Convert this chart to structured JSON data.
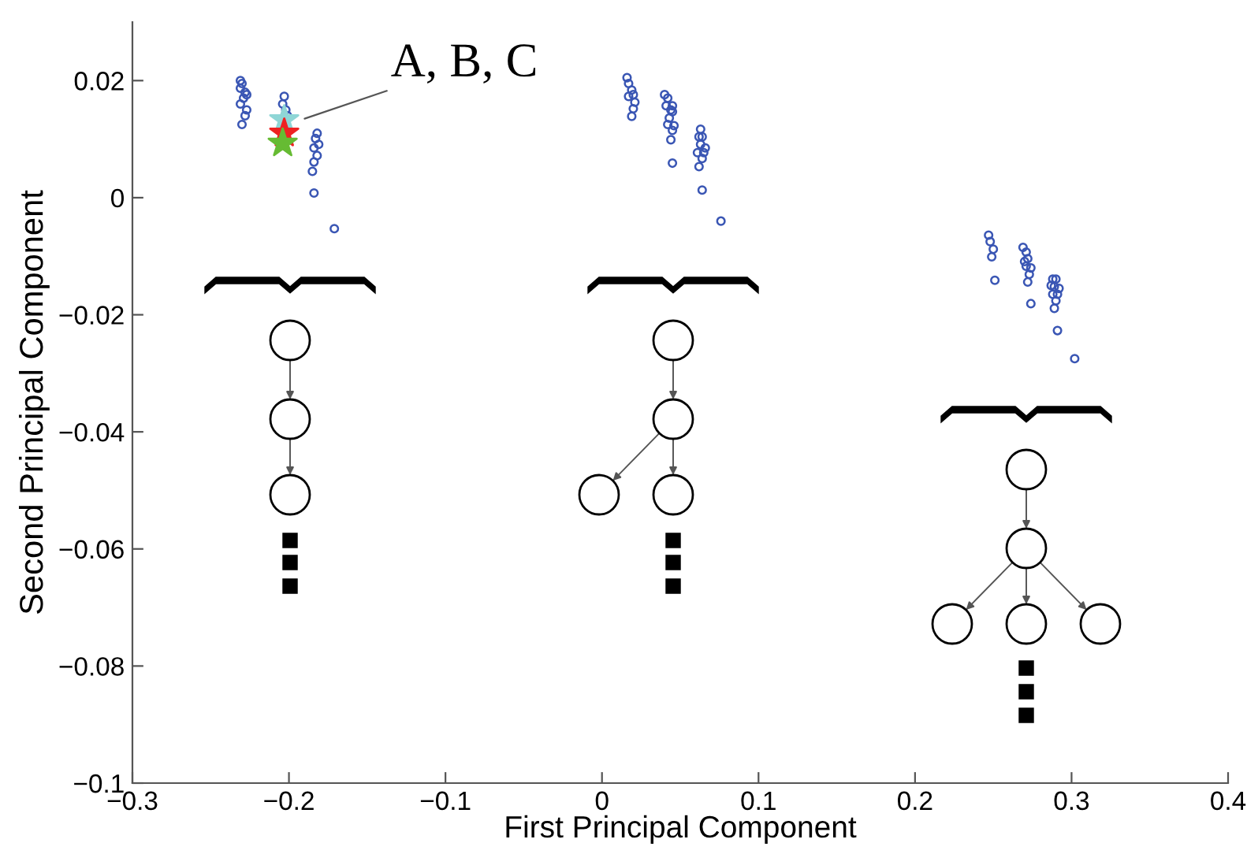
{
  "chart_data": {
    "type": "scatter",
    "xlabel": "First Principal Component",
    "ylabel": "Second Principal Component",
    "xlim": [
      -0.3,
      0.4
    ],
    "xticks": [
      {
        "value": -0.3,
        "label": "−0.3"
      },
      {
        "value": -0.2,
        "label": "−0.2"
      },
      {
        "value": -0.1,
        "label": "−0.1"
      },
      0,
      0.1,
      0.2,
      0.3,
      0.4
    ],
    "ylim": [
      -0.1,
      0.03
    ],
    "yticks": [
      {
        "value": -0.1,
        "label": "−0.1"
      },
      {
        "value": -0.08,
        "label": "−0.08"
      },
      {
        "value": -0.06,
        "label": "−0.06"
      },
      {
        "value": -0.04,
        "label": "−0.04"
      },
      {
        "value": -0.02,
        "label": "−0.02"
      },
      0,
      0.02
    ],
    "grid": false,
    "annotations": [
      {
        "text": "A, B, C",
        "x": -0.19,
        "y": 0.0135
      }
    ],
    "series": [
      {
        "color": "#3a56b4",
        "marker": "circle",
        "x": [
          -0.231,
          -0.23,
          -0.231,
          -0.228,
          -0.227,
          -0.229,
          -0.231,
          -0.227,
          -0.228,
          -0.23,
          -0.203,
          -0.204,
          -0.202,
          -0.201,
          -0.182,
          -0.183,
          -0.181,
          -0.184,
          -0.182,
          -0.184,
          -0.185,
          -0.184,
          -0.171,
          0.016,
          0.017,
          0.019,
          0.017,
          0.02,
          0.021,
          0.02,
          0.019,
          0.04,
          0.042,
          0.041,
          0.045,
          0.044,
          0.045,
          0.043,
          0.042,
          0.046,
          0.045,
          0.044,
          0.045,
          0.063,
          0.062,
          0.064,
          0.063,
          0.066,
          0.061,
          0.065,
          0.064,
          0.062,
          0.064,
          0.076,
          0.247,
          0.248,
          0.25,
          0.249,
          0.251,
          0.269,
          0.271,
          0.272,
          0.27,
          0.274,
          0.271,
          0.273,
          0.272,
          0.274,
          0.288,
          0.29,
          0.287,
          0.289,
          0.292,
          0.288,
          0.291,
          0.29,
          0.289,
          0.291,
          0.302
        ],
        "values": [
          0.02,
          0.0195,
          0.0187,
          0.018,
          0.0176,
          0.017,
          0.016,
          0.015,
          0.014,
          0.0125,
          0.0173,
          0.016,
          0.015,
          0.014,
          0.011,
          0.0101,
          0.0091,
          0.0085,
          0.0072,
          0.0061,
          0.0045,
          0.0008,
          -0.0053,
          0.0205,
          0.0195,
          0.0184,
          0.0173,
          0.0176,
          0.0163,
          0.0152,
          0.0139,
          0.0176,
          0.017,
          0.0157,
          0.0157,
          0.015,
          0.0147,
          0.0136,
          0.0125,
          0.0123,
          0.0115,
          0.0099,
          0.0059,
          0.0117,
          0.0104,
          0.0104,
          0.0091,
          0.0085,
          0.0077,
          0.0077,
          0.0067,
          0.0053,
          0.0013,
          -0.004,
          -0.0064,
          -0.0075,
          -0.0088,
          -0.0101,
          -0.0141,
          -0.0085,
          -0.0093,
          -0.0104,
          -0.0109,
          -0.012,
          -0.0117,
          -0.0131,
          -0.0144,
          -0.0181,
          -0.0139,
          -0.0139,
          -0.015,
          -0.0152,
          -0.0155,
          -0.0165,
          -0.0165,
          -0.0176,
          -0.0189,
          -0.0227,
          -0.0275
        ]
      },
      {
        "color": "#8fd6d6",
        "marker": "star",
        "x": [
          -0.203
        ],
        "values": [
          0.0133
        ]
      },
      {
        "color": "#ee2222",
        "marker": "star",
        "x": [
          -0.203
        ],
        "values": [
          0.011
        ]
      },
      {
        "color": "#66bb33",
        "marker": "star",
        "x": [
          -0.204
        ],
        "values": [
          0.0093
        ]
      }
    ]
  }
}
